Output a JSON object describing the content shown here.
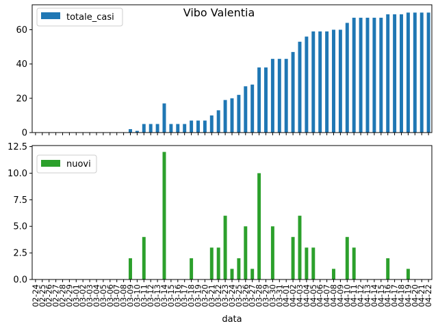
{
  "title": "Vibo Valentia",
  "chart_data": [
    {
      "type": "bar",
      "ylim": [
        0,
        74.55
      ],
      "yticks": [
        "0",
        "20",
        "40",
        "60"
      ],
      "legend_position": "upper-left",
      "grid": false,
      "categories": [
        "02-24",
        "02-25",
        "02-26",
        "02-27",
        "02-28",
        "02-29",
        "03-01",
        "03-02",
        "03-03",
        "03-04",
        "03-05",
        "03-06",
        "03-07",
        "03-08",
        "03-09",
        "03-10",
        "03-11",
        "03-12",
        "03-13",
        "03-14",
        "03-15",
        "03-16",
        "03-17",
        "03-18",
        "03-19",
        "03-20",
        "03-21",
        "03-22",
        "03-23",
        "03-24",
        "03-25",
        "03-26",
        "03-27",
        "03-28",
        "03-29",
        "03-30",
        "03-31",
        "04-01",
        "04-02",
        "04-03",
        "04-04",
        "04-05",
        "04-06",
        "04-07",
        "04-08",
        "04-09",
        "04-10",
        "04-11",
        "04-12",
        "04-13",
        "04-14",
        "04-15",
        "04-16",
        "04-17",
        "04-18",
        "04-19",
        "04-20",
        "04-21",
        "04-22"
      ],
      "series": [
        {
          "name": "totale_casi",
          "color": "#1f77b4",
          "values": [
            0,
            0,
            0,
            0,
            0,
            0,
            0,
            0,
            0,
            0,
            0,
            0,
            0,
            0,
            2,
            1,
            5,
            5,
            5,
            17,
            5,
            5,
            5,
            7,
            7,
            7,
            10,
            13,
            19,
            20,
            22,
            27,
            28,
            38,
            38,
            43,
            43,
            43,
            47,
            53,
            56,
            59,
            59,
            59,
            60,
            60,
            64,
            67,
            67,
            67,
            67,
            67,
            69,
            69,
            69,
            70,
            70,
            70,
            70
          ]
        }
      ]
    },
    {
      "type": "bar",
      "ylim": [
        0,
        12.6
      ],
      "yticks": [
        "0.0",
        "2.5",
        "5.0",
        "7.5",
        "10.0",
        "12.5"
      ],
      "legend_position": "upper-left",
      "grid": false,
      "xlabel": "data",
      "series": [
        {
          "name": "nuovi",
          "color": "#2ca02c",
          "values": [
            0,
            0,
            0,
            0,
            0,
            0,
            0,
            0,
            0,
            0,
            0,
            0,
            0,
            0,
            2,
            0,
            4,
            0,
            0,
            12,
            0,
            0,
            0,
            2,
            0,
            0,
            3,
            3,
            6,
            1,
            2,
            5,
            1,
            10,
            0,
            5,
            0,
            0,
            4,
            6,
            3,
            3,
            0,
            0,
            1,
            0,
            4,
            3,
            0,
            0,
            0,
            0,
            2,
            0,
            0,
            1,
            0,
            0,
            0
          ]
        }
      ]
    }
  ]
}
